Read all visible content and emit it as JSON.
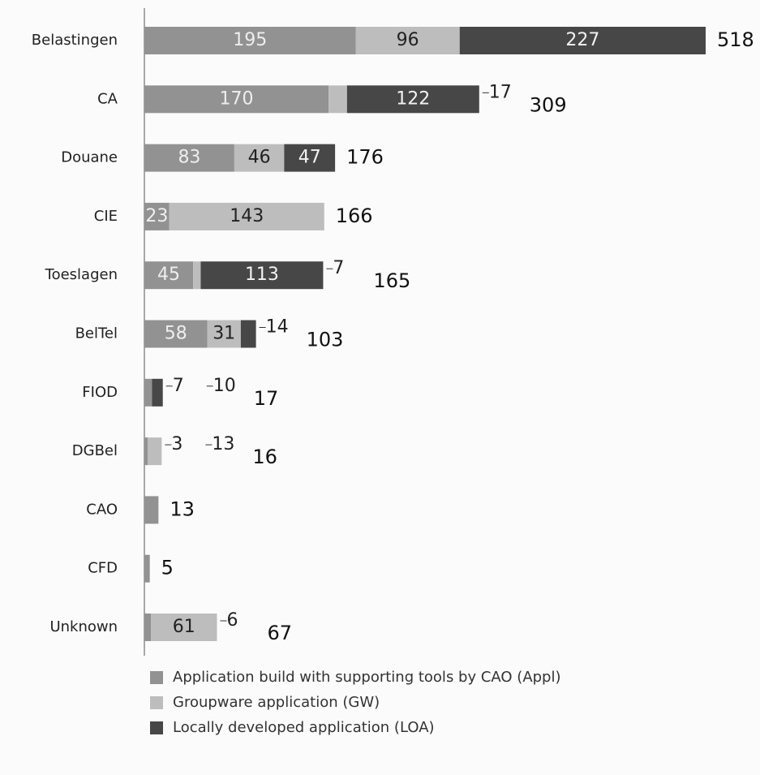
{
  "chart_data": {
    "type": "stacked_barh",
    "categories": [
      "Belastingen",
      "CA",
      "Douane",
      "CIE",
      "Toeslagen",
      "BelTel",
      "FIOD",
      "DGBel",
      "CAO",
      "CFD",
      "Unknown"
    ],
    "series": [
      {
        "name": "Application build with supporting  tools by CAO (Appl)",
        "color": "#929292",
        "values": [
          195,
          170,
          83,
          23,
          45,
          58,
          7,
          3,
          13,
          5,
          6
        ]
      },
      {
        "name": "Groupware application (GW)",
        "color": "#bdbdbd",
        "values": [
          96,
          17,
          46,
          143,
          7,
          31,
          null,
          13,
          null,
          null,
          61
        ]
      },
      {
        "name": "Locally developed application (LOA)",
        "color": "#474747",
        "values": [
          227,
          122,
          47,
          null,
          113,
          14,
          10,
          null,
          null,
          null,
          null
        ]
      }
    ],
    "totals": [
      518,
      309,
      176,
      166,
      165,
      103,
      17,
      16,
      13,
      5,
      67
    ],
    "xlim": [
      0,
      518
    ]
  }
}
